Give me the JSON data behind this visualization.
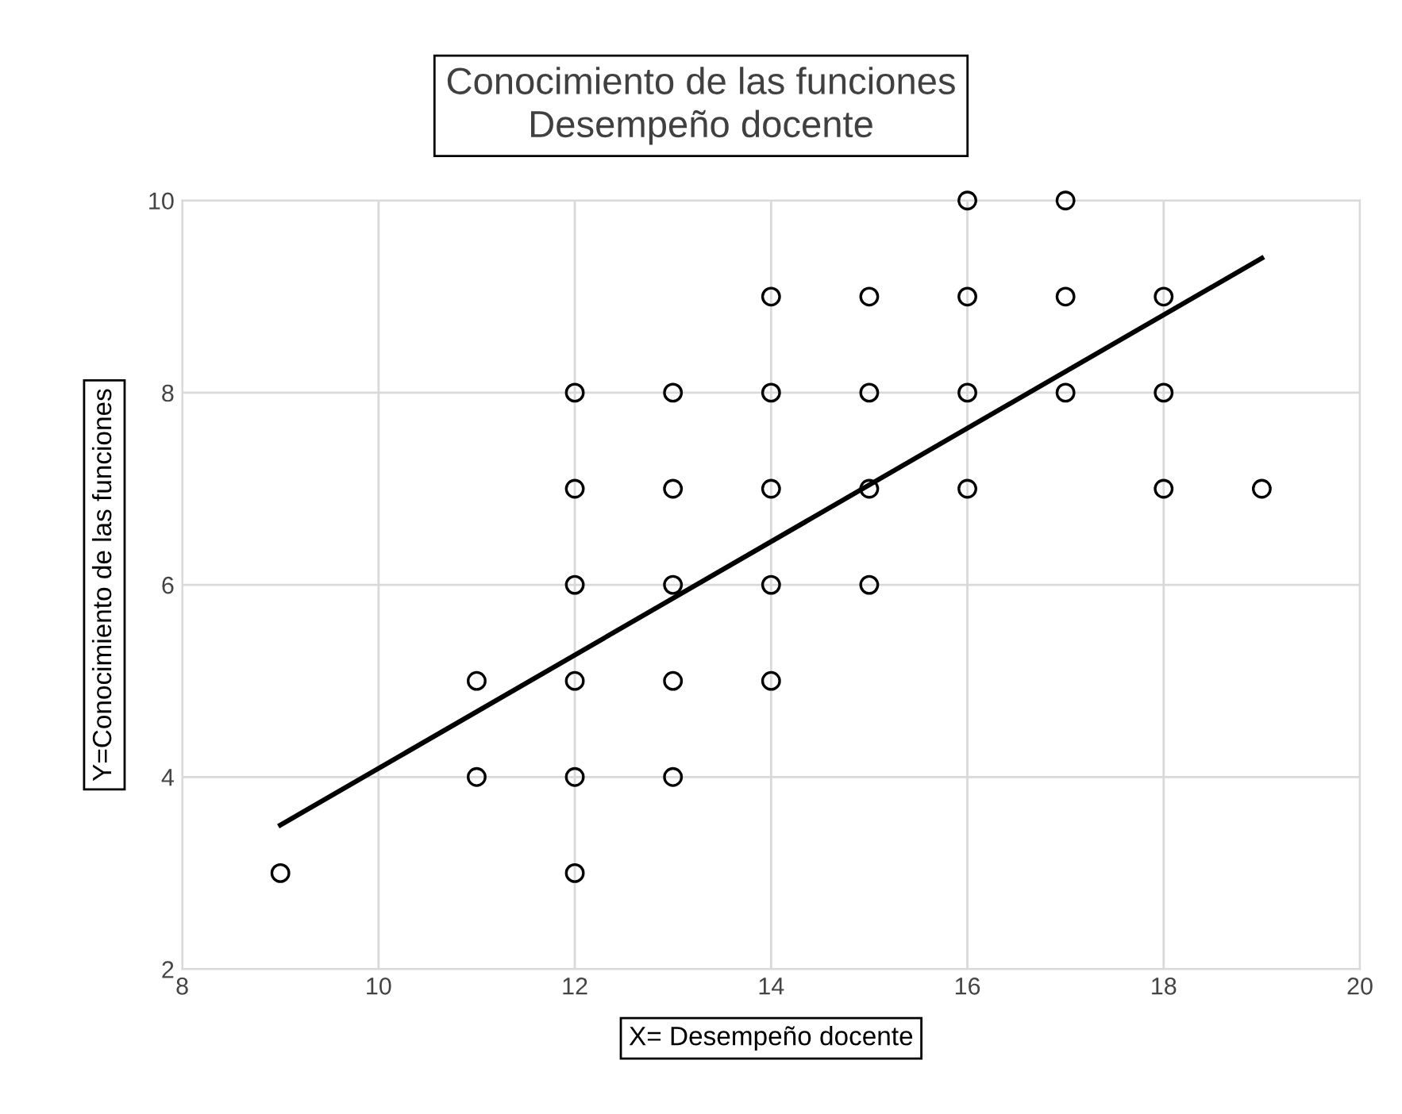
{
  "chart_data": {
    "type": "scatter",
    "title": "Conocimiento de las funciones\nDesempeño docente",
    "xlabel": "X= Desempeño docente",
    "ylabel": "Y=Conocimiento de las funciones",
    "xlim": [
      8,
      20
    ],
    "xticks": [
      8,
      10,
      12,
      14,
      16,
      18,
      20
    ],
    "ylim": [
      2,
      10
    ],
    "yticks": [
      2,
      4,
      6,
      8,
      10
    ],
    "grid": true,
    "series": [
      {
        "marker": "circle",
        "color": "#000000",
        "x": [
          9,
          11,
          11,
          12,
          12,
          12,
          12,
          12,
          12,
          13,
          13,
          13,
          13,
          13,
          14,
          14,
          14,
          14,
          14,
          15,
          15,
          15,
          15,
          16,
          16,
          16,
          16,
          17,
          17,
          17,
          18,
          18,
          18,
          19
        ],
        "values": [
          3,
          5,
          4,
          8,
          7,
          6,
          5,
          4,
          3,
          8,
          7,
          6,
          5,
          4,
          9,
          8,
          7,
          6,
          5,
          9,
          8,
          7,
          6,
          10,
          9,
          8,
          7,
          10,
          9,
          8,
          9,
          8,
          7,
          7
        ]
      },
      {
        "type": "line",
        "color": "#000000",
        "x": [
          9,
          19
        ],
        "values": [
          3.5,
          9.4
        ]
      }
    ]
  }
}
